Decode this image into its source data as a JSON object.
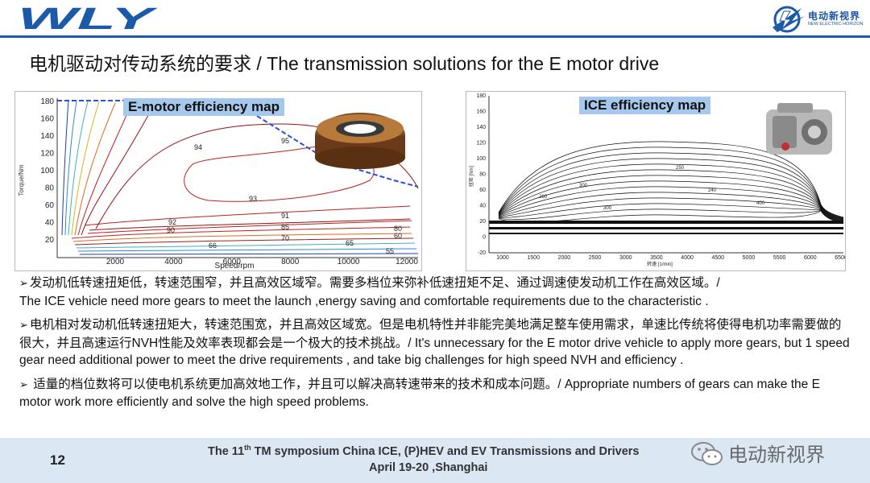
{
  "header": {
    "logo_text": "WLY",
    "brand_cn": "电动新视界",
    "brand_en": "NEW ELECTRIC HORIZON"
  },
  "title": "电机驱动对传动系统的要求 / The transmission solutions  for  the E motor drive",
  "emotor_map": {
    "label": "E-motor efficiency map",
    "ylabel": "Torque/Nm",
    "xlabel": "Speed/rpm",
    "y_ticks": [
      "20",
      "40",
      "60",
      "80",
      "100",
      "120",
      "140",
      "160",
      "180"
    ],
    "x_ticks": [
      "2000",
      "4000",
      "6000",
      "8000",
      "10000",
      "12000"
    ],
    "contour_labels": [
      "95",
      "94",
      "93",
      "92",
      "91",
      "90",
      "85",
      "80",
      "70",
      "66",
      "65",
      "60",
      "55"
    ]
  },
  "ice_map": {
    "label": "ICE efficiency map",
    "ylabel": "扭矩 [Nm]",
    "xlabel": "转速 [1/min]",
    "y_ticks": [
      "-20",
      "0",
      "20",
      "40",
      "60",
      "80",
      "100",
      "120",
      "140",
      "160",
      "180"
    ],
    "x_ticks": [
      "1000",
      "1500",
      "2000",
      "2500",
      "3000",
      "3500",
      "4000",
      "4500",
      "5000",
      "5500",
      "6000",
      "6500"
    ],
    "contour_labels": [
      "300",
      "260",
      "250",
      "240",
      "300",
      "400"
    ]
  },
  "bullets": [
    {
      "mark": "➢",
      "cn": "发动机低转速扭矩低，转速范围窄，并且高效区域窄。需要多档位来弥补低速扭矩不足、通过调速使发动机工作在高效区域。/",
      "en": "The ICE vehicle need more gears to meet the launch ,energy saving and comfortable requirements due to the characteristic ."
    },
    {
      "mark": "➢",
      "cn": "电机相对发动机低转速扭矩大，转速范围宽，并且高效区域宽。但是电机特性并非能完美地满足整车使用需求，单速比传统将使得电机功率需要做的很大，并且高速运行NVH性能及效率表现都会是一个极大的技术挑战。/",
      "en": "It's unnecessary for the E motor drive vehicle to apply more gears, but 1 speed gear  need additional power to meet the drive requirements , and take big challenges for high speed NVH and efficiency ."
    },
    {
      "mark": "➢",
      "cn": " 适量的档位数将可以使电机系统更加高效地工作，并且可以解决高转速带来的技术和成本问题。/",
      "en": " Appropriate numbers of gears can make the E motor work more efficiently and solve the high speed problems."
    }
  ],
  "footer": {
    "page": "12",
    "line1_pre": "The 11",
    "line1_sup": "th",
    "line1_post": " TM symposium China ICE, (P)HEV and EV Transmissions and Drivers",
    "line2": "April 19-20 ,Shanghai",
    "wechat_name": "电动新视界"
  },
  "colors": {
    "brand_blue": "#1b5aa8",
    "label_bg": "#a6c8ec",
    "footer_bg": "#dbe7f2"
  }
}
